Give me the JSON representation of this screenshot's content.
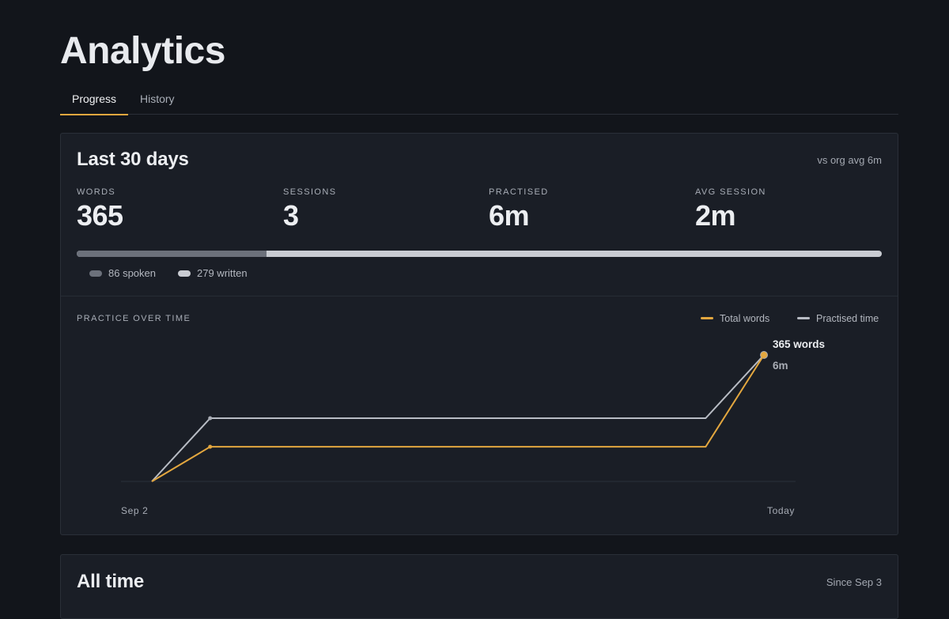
{
  "page_title": "Analytics",
  "tabs": [
    {
      "label": "Progress",
      "active": true
    },
    {
      "label": "History",
      "active": false
    }
  ],
  "last30": {
    "title": "Last 30 days",
    "aside": "vs org avg 6m",
    "stats": [
      {
        "label": "WORDS",
        "value": "365"
      },
      {
        "label": "SESSIONS",
        "value": "3"
      },
      {
        "label": "PRACTISED",
        "value": "6m"
      },
      {
        "label": "AVG SESSION",
        "value": "2m"
      }
    ],
    "word_split": {
      "spoken": 86,
      "written": 279,
      "spoken_label": "86 spoken",
      "written_label": "279 written",
      "spoken_color": "#6c717b",
      "written_color": "#c9ccd2"
    }
  },
  "chart_data": {
    "type": "line",
    "title": "PRACTICE OVER TIME",
    "x_labels": [
      "Sep 2",
      "Today"
    ],
    "series": [
      {
        "name": "Total words",
        "color": "#e3a73f",
        "values": [
          0,
          100,
          100,
          365
        ]
      },
      {
        "name": "Practised time",
        "color": "#b8bcc4",
        "values": [
          0,
          3,
          3,
          6
        ]
      }
    ],
    "x": [
      0,
      2,
      19,
      21
    ],
    "end_labels": {
      "words": "365 words",
      "time": "6m"
    },
    "grid": false,
    "legend": "top-right"
  },
  "all_time": {
    "title": "All time",
    "aside": "Since Sep 3"
  },
  "colors": {
    "accent": "#e3a73f",
    "background": "#12151b",
    "card": "#1a1e26"
  }
}
